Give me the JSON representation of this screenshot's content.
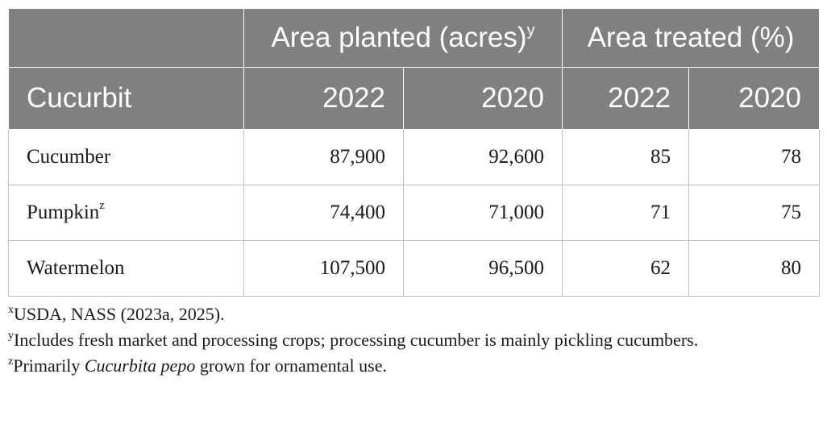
{
  "table": {
    "header_groups": {
      "area_planted": "Area planted (acres)",
      "area_planted_mark": "y",
      "area_treated": "Area treated (%)"
    },
    "columns": [
      "Cucurbit",
      "2022",
      "2020",
      "2022",
      "2020"
    ],
    "rows": [
      {
        "name": "Cucumber",
        "mark": "",
        "values": [
          "87,900",
          "92,600",
          "85",
          "78"
        ]
      },
      {
        "name": "Pumpkin",
        "mark": "z",
        "values": [
          "74,400",
          "71,000",
          "71",
          "75"
        ]
      },
      {
        "name": "Watermelon",
        "mark": "",
        "values": [
          "107,500",
          "96,500",
          "62",
          "80"
        ]
      }
    ]
  },
  "footnotes": {
    "x": {
      "mark": "x",
      "text": "USDA, NASS (2023a, 2025)."
    },
    "y": {
      "mark": "y",
      "text": "Includes fresh market and processing crops; processing cucumber is mainly pickling cucumbers."
    },
    "z": {
      "mark": "z",
      "text_before": "Primarily ",
      "italic": "Cucurbita pepo",
      "text_after": " grown for ornamental use."
    }
  }
}
